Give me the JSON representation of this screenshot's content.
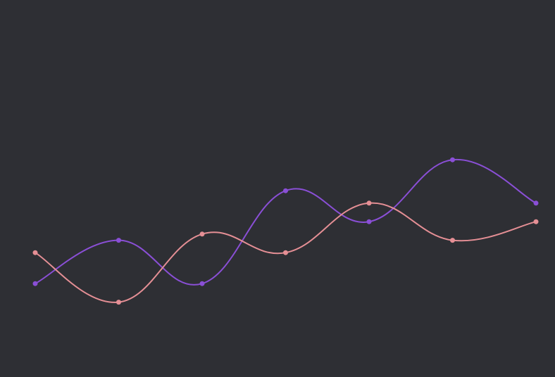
{
  "colors": {
    "background": "#2e2f34",
    "series_a": "#8a4fd6",
    "series_b": "#e58f95"
  },
  "chart_data": {
    "type": "line",
    "title": "",
    "xlabel": "",
    "ylabel": "",
    "grid": false,
    "legend": "none",
    "smooth": true,
    "x": [
      1,
      2,
      3,
      4,
      5,
      6,
      7
    ],
    "ylim": [
      0,
      10
    ],
    "series": [
      {
        "values": [
          2.2,
          3.6,
          2.2,
          5.2,
          4.2,
          6.2,
          4.8
        ],
        "color": "#8a4fd6"
      },
      {
        "values": [
          3.2,
          1.6,
          3.8,
          3.2,
          4.8,
          3.6,
          4.2
        ],
        "color": "#e58f95"
      }
    ]
  }
}
